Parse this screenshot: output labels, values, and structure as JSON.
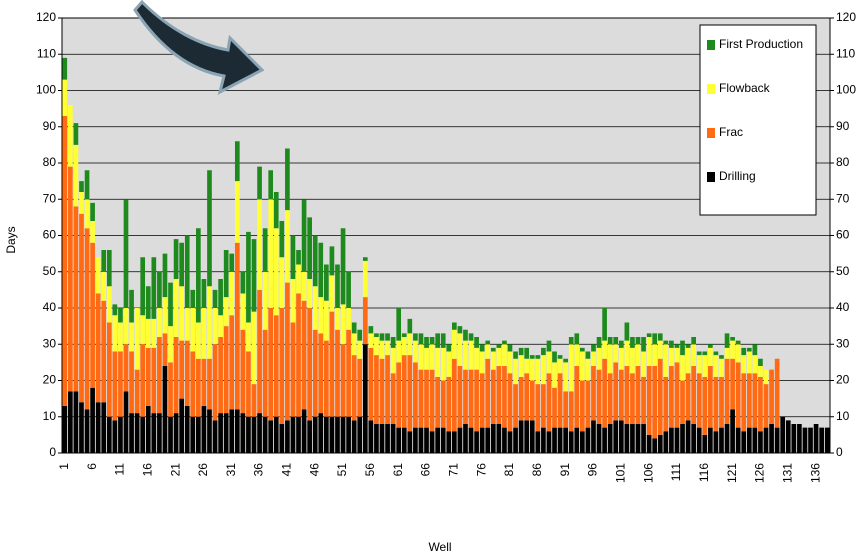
{
  "chart_data": {
    "type": "stacked-bar",
    "y_label": "Days",
    "x_label": "Well",
    "categories": [
      "1",
      null,
      null,
      null,
      null,
      "6",
      null,
      null,
      null,
      null,
      "11",
      null,
      null,
      null,
      null,
      "16",
      null,
      null,
      null,
      null,
      "21",
      null,
      null,
      null,
      null,
      "26",
      null,
      null,
      null,
      null,
      "31",
      null,
      null,
      null,
      null,
      "36",
      null,
      null,
      null,
      null,
      "41",
      null,
      null,
      null,
      null,
      "46",
      null,
      null,
      null,
      null,
      "51",
      null,
      null,
      null,
      null,
      "56",
      null,
      null,
      null,
      null,
      "61",
      null,
      null,
      null,
      null,
      "66",
      null,
      null,
      null,
      null,
      "71",
      null,
      null,
      null,
      null,
      "76",
      null,
      null,
      null,
      null,
      "81",
      null,
      null,
      null,
      null,
      "86",
      null,
      null,
      null,
      null,
      "91",
      null,
      null,
      null,
      null,
      "96",
      null,
      null,
      null,
      null,
      "101",
      null,
      null,
      null,
      null,
      "106",
      null,
      null,
      null,
      null,
      "111",
      null,
      null,
      null,
      null,
      "116",
      null,
      null,
      null,
      null,
      "121",
      null,
      null,
      null,
      null,
      "126",
      null,
      null,
      null,
      null,
      "131",
      null,
      null,
      null,
      null,
      "136",
      null,
      null
    ],
    "series": [
      {
        "name": "Drilling",
        "color": "#000000",
        "values": [
          13,
          17,
          17,
          14,
          12,
          18,
          14,
          14,
          10,
          9,
          10,
          17,
          11,
          11,
          10,
          13,
          11,
          11,
          24,
          10,
          11,
          15,
          13,
          10,
          10,
          13,
          12,
          9,
          11,
          11,
          12,
          12,
          11,
          10,
          10,
          11,
          10,
          9,
          10,
          8,
          9,
          10,
          10,
          12,
          9,
          10,
          11,
          10,
          10,
          10,
          10,
          10,
          9,
          10,
          30,
          9,
          8,
          8,
          8,
          8,
          7,
          7,
          6,
          7,
          7,
          7,
          6,
          7,
          7,
          6,
          6,
          7,
          8,
          7,
          6,
          7,
          7,
          8,
          8,
          7,
          6,
          7,
          9,
          9,
          9,
          6,
          7,
          6,
          7,
          7,
          7,
          6,
          7,
          6,
          7,
          9,
          8,
          7,
          8,
          9,
          9,
          8,
          8,
          8,
          8,
          5,
          4,
          5,
          6,
          7,
          7,
          8,
          9,
          8,
          7,
          5,
          7,
          6,
          7,
          8,
          12,
          7,
          6,
          7,
          7,
          6,
          7,
          8,
          7,
          10,
          9,
          8,
          8,
          7,
          7,
          8,
          7,
          7
        ]
      },
      {
        "name": "Frac",
        "color": "#ff6a13",
        "values": [
          80,
          62,
          51,
          52,
          50,
          40,
          30,
          28,
          26,
          19,
          18,
          13,
          17,
          12,
          20,
          16,
          18,
          21,
          9,
          15,
          21,
          16,
          18,
          18,
          16,
          13,
          14,
          21,
          21,
          24,
          26,
          46,
          23,
          18,
          9,
          34,
          24,
          31,
          28,
          32,
          38,
          26,
          34,
          30,
          31,
          24,
          22,
          21,
          29,
          24,
          20,
          24,
          18,
          16,
          13,
          20,
          19,
          18,
          19,
          14,
          18,
          20,
          21,
          18,
          16,
          16,
          17,
          14,
          13,
          15,
          20,
          17,
          15,
          16,
          17,
          15,
          19,
          15,
          16,
          17,
          16,
          12,
          12,
          13,
          11,
          13,
          12,
          16,
          11,
          15,
          10,
          11,
          17,
          14,
          13,
          15,
          15,
          19,
          14,
          16,
          14,
          16,
          14,
          16,
          13,
          19,
          20,
          21,
          15,
          17,
          18,
          12,
          13,
          16,
          15,
          16,
          17,
          15,
          14,
          18,
          14,
          18,
          16,
          15,
          15,
          15,
          12,
          15,
          19,
          0,
          0,
          0,
          0,
          0,
          0,
          0,
          0,
          0
        ]
      },
      {
        "name": "Flowback",
        "color": "#ffff33",
        "values": [
          10,
          17,
          17,
          6,
          8,
          6,
          10,
          8,
          10,
          10,
          8,
          10,
          8,
          17,
          8,
          8,
          8,
          8,
          10,
          10,
          16,
          15,
          9,
          12,
          10,
          14,
          20,
          10,
          6,
          8,
          12,
          17,
          10,
          8,
          20,
          25,
          16,
          30,
          24,
          14,
          20,
          12,
          8,
          8,
          8,
          12,
          10,
          11,
          10,
          6,
          11,
          6,
          6,
          5,
          10,
          4,
          5,
          5,
          4,
          7,
          6,
          5,
          6,
          6,
          7,
          6,
          7,
          8,
          9,
          7,
          8,
          9,
          8,
          8,
          6,
          6,
          4,
          5,
          5,
          6,
          6,
          7,
          6,
          4,
          6,
          7,
          8,
          6,
          7,
          4,
          8,
          13,
          6,
          8,
          6,
          4,
          6,
          5,
          8,
          5,
          6,
          7,
          7,
          6,
          7,
          8,
          6,
          5,
          9,
          5,
          4,
          7,
          7,
          6,
          5,
          6,
          5,
          6,
          5,
          3,
          5,
          5,
          5,
          6,
          5,
          3,
          4,
          0,
          0,
          0,
          0,
          0,
          0,
          0,
          0,
          0,
          0,
          0
        ]
      },
      {
        "name": "First Production",
        "color": "#1e8a1e",
        "values": [
          6,
          0,
          6,
          3,
          8,
          5,
          0,
          6,
          10,
          3,
          4,
          30,
          9,
          0,
          16,
          9,
          17,
          10,
          12,
          12,
          11,
          12,
          20,
          5,
          26,
          8,
          32,
          5,
          10,
          13,
          5,
          11,
          6,
          25,
          20,
          9,
          12,
          8,
          10,
          10,
          17,
          12,
          4,
          20,
          17,
          14,
          15,
          10,
          8,
          12,
          21,
          10,
          3,
          3,
          1,
          2,
          1,
          2,
          2,
          3,
          9,
          1,
          4,
          2,
          3,
          3,
          2,
          4,
          4,
          2,
          2,
          2,
          3,
          2,
          3,
          2,
          1,
          1,
          1,
          1,
          2,
          2,
          2,
          3,
          1,
          1,
          2,
          3,
          3,
          1,
          1,
          2,
          3,
          1,
          2,
          2,
          3,
          9,
          2,
          2,
          2,
          5,
          3,
          2,
          4,
          1,
          3,
          2,
          1,
          2,
          1,
          4,
          1,
          2,
          1,
          1,
          1,
          1,
          1,
          4,
          1,
          1,
          2,
          1,
          3,
          2,
          0,
          0,
          0,
          0,
          0,
          0,
          0,
          0,
          0,
          0,
          0,
          0
        ]
      }
    ],
    "ylim": [
      0,
      120
    ],
    "yticks": [
      0,
      10,
      20,
      30,
      40,
      50,
      60,
      70,
      80,
      90,
      100,
      110,
      120
    ],
    "y2lim": [
      0,
      120
    ],
    "y2ticks": [
      0,
      10,
      20,
      30,
      40,
      50,
      60,
      70,
      80,
      90,
      100,
      110,
      120
    ],
    "grid": true,
    "legend": "top-right"
  }
}
